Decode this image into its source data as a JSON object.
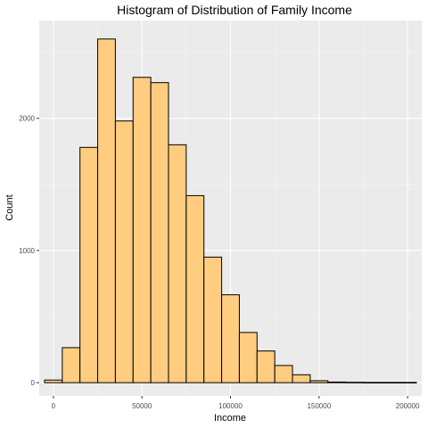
{
  "chart_data": {
    "type": "bar",
    "title": "Histogram of Distribution of Family Income",
    "xlabel": "Income",
    "ylabel": "Count",
    "bin_width": 10000,
    "bin_centers": [
      0,
      10000,
      20000,
      30000,
      40000,
      50000,
      60000,
      70000,
      80000,
      90000,
      100000,
      110000,
      120000,
      130000,
      140000,
      150000,
      160000,
      170000,
      180000,
      190000,
      200000
    ],
    "values": [
      20,
      265,
      1780,
      2600,
      1980,
      2310,
      2270,
      1800,
      1415,
      950,
      665,
      380,
      240,
      130,
      60,
      15,
      5,
      3,
      2,
      2,
      2
    ],
    "xlim": [
      -8000,
      208000
    ],
    "ylim": [
      -100,
      2740
    ],
    "x_ticks": [
      0,
      50000,
      100000,
      150000,
      200000
    ],
    "x_tick_labels": [
      "0",
      "50000",
      "100000",
      "150000",
      "200000"
    ],
    "y_ticks": [
      0,
      1000,
      2000
    ],
    "y_tick_labels": [
      "0",
      "1000",
      "2000"
    ],
    "grid": true,
    "colors": {
      "bar_fill": "#FFCC80",
      "bar_stroke": "#000000",
      "panel": "#EBEBEB",
      "grid_major": "#FFFFFF",
      "grid_minor": "#F5F5F5"
    }
  }
}
